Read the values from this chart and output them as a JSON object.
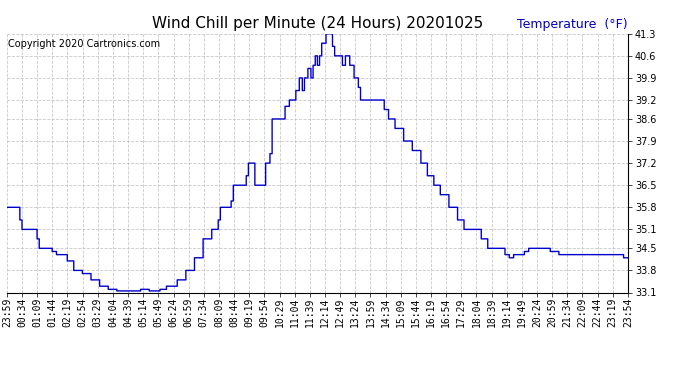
{
  "title": "Wind Chill per Minute (24 Hours) 20201025",
  "copyright_text": "Copyright 2020 Cartronics.com",
  "ylabel": "Temperature  (°F)",
  "line_color": "#0000CC",
  "ylabel_color": "#0000CC",
  "copyright_color": "#000000",
  "background_color": "#ffffff",
  "grid_color": "#bbbbbb",
  "ylim": [
    33.1,
    41.3
  ],
  "yticks": [
    33.1,
    33.8,
    34.5,
    35.1,
    35.8,
    36.5,
    37.2,
    37.9,
    38.6,
    39.2,
    39.9,
    40.6,
    41.3
  ],
  "x_labels": [
    "23:59",
    "00:34",
    "01:09",
    "01:44",
    "02:19",
    "02:54",
    "03:29",
    "04:04",
    "04:39",
    "05:14",
    "05:49",
    "06:24",
    "06:59",
    "07:34",
    "08:09",
    "08:44",
    "09:19",
    "09:54",
    "10:29",
    "11:04",
    "11:39",
    "12:14",
    "12:49",
    "13:24",
    "13:59",
    "14:34",
    "15:09",
    "15:44",
    "16:19",
    "16:54",
    "17:29",
    "18:04",
    "18:39",
    "19:14",
    "19:49",
    "20:24",
    "20:59",
    "21:34",
    "22:09",
    "22:44",
    "23:19",
    "23:54"
  ],
  "title_fontsize": 11,
  "tick_fontsize": 7,
  "ylabel_fontsize": 9,
  "copyright_fontsize": 7,
  "line_width": 1.0
}
